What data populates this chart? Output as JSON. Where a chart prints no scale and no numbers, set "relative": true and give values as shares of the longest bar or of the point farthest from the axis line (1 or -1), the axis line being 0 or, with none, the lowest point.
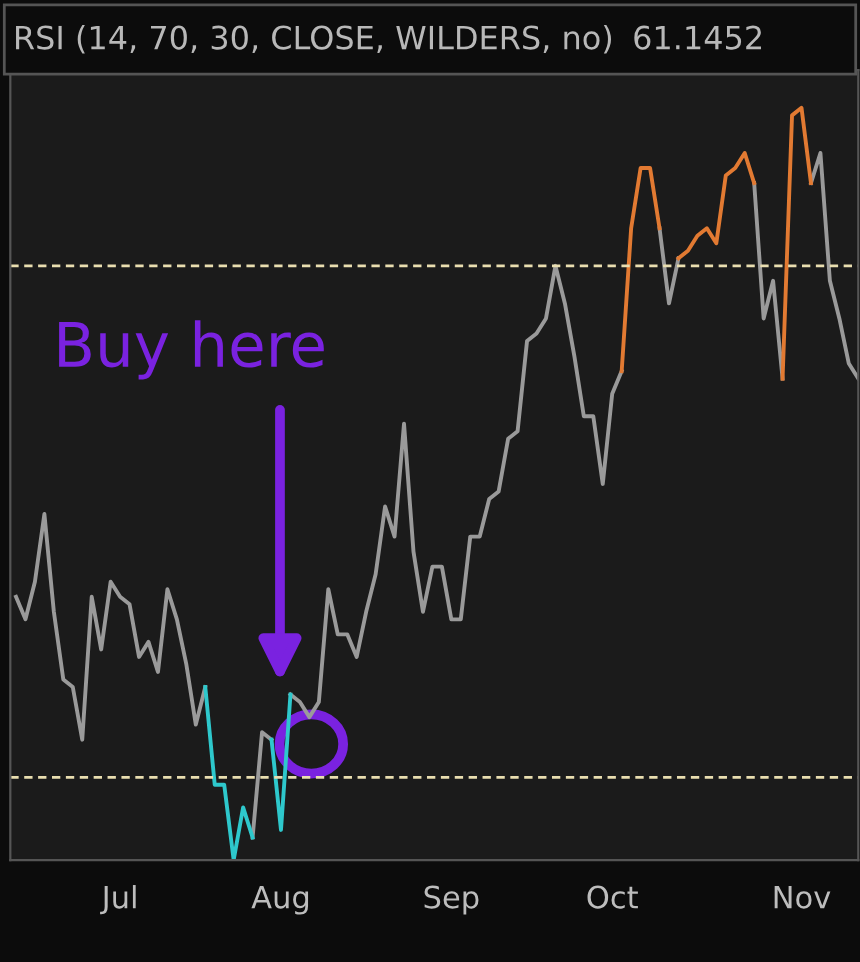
{
  "chart_data": {
    "type": "line",
    "title": "RSI (14, 70, 30, CLOSE, WILDERS, no)",
    "subtitle": "61.1452",
    "relative": true,
    "categories": [
      null,
      null,
      null,
      null,
      null,
      null,
      null,
      null,
      null,
      null,
      null,
      "Jul",
      null,
      null,
      null,
      null,
      null,
      null,
      null,
      null,
      null,
      null,
      null,
      null,
      null,
      null,
      null,
      null,
      "Aug",
      null,
      null,
      null,
      null,
      null,
      null,
      null,
      null,
      null,
      null,
      null,
      null,
      null,
      null,
      null,
      null,
      null,
      "Sep",
      null,
      null,
      null,
      null,
      null,
      null,
      null,
      null,
      null,
      null,
      null,
      null,
      null,
      null,
      null,
      null,
      "Oct",
      null,
      null,
      null,
      null,
      null,
      null,
      null,
      null,
      null,
      null,
      null,
      null,
      null,
      null,
      null,
      null,
      null,
      null,
      null,
      "Nov",
      null,
      null,
      null,
      null,
      null,
      null
    ],
    "series": [
      {
        "color": "#9a9a9a",
        "values": [
          0.35,
          0.32,
          0.37,
          0.46,
          0.33,
          0.24,
          0.23,
          0.16,
          0.35,
          0.28,
          0.37,
          0.35,
          0.34,
          0.27,
          0.29,
          0.25,
          0.36,
          0.32,
          0.26,
          0.18,
          0.23,
          null,
          null,
          null,
          null,
          0.03,
          0.17,
          0.16,
          null,
          0.22,
          0.21,
          0.19,
          0.21,
          0.36,
          0.3,
          0.3,
          0.27,
          0.33,
          0.38,
          0.47,
          0.43,
          0.58,
          0.41,
          0.33,
          0.39,
          0.39,
          0.32,
          0.32,
          0.43,
          0.43,
          0.48,
          0.49,
          0.56,
          0.57,
          0.69,
          0.7,
          0.72,
          0.79,
          0.74,
          0.67,
          0.59,
          0.59,
          0.5,
          0.62,
          0.65,
          null,
          null,
          null,
          0.84,
          0.74,
          0.8,
          null,
          null,
          null,
          null,
          null,
          null,
          null,
          0.9,
          0.72,
          0.77,
          0.64,
          null,
          null,
          0.9,
          0.94,
          0.77,
          0.72,
          0.66,
          0.64
        ]
      },
      {
        "color": "#2ec8cc",
        "values": [
          null,
          null,
          null,
          null,
          null,
          null,
          null,
          null,
          null,
          null,
          null,
          null,
          null,
          null,
          null,
          null,
          null,
          null,
          null,
          null,
          0.23,
          0.1,
          0.1,
          0,
          0.07,
          0.03,
          null,
          0.16,
          0.04,
          0.22,
          null,
          null,
          null,
          null,
          null,
          null,
          null,
          null,
          null,
          null,
          null,
          null,
          null,
          null,
          null,
          null,
          null,
          null,
          null,
          null,
          null,
          null,
          null,
          null,
          null,
          null,
          null,
          null,
          null,
          null,
          null,
          null,
          null,
          null,
          null,
          null,
          null,
          null,
          null,
          null,
          null,
          null,
          null,
          null,
          null,
          null,
          null,
          null,
          null,
          null,
          null,
          null,
          null,
          null,
          null,
          null,
          null,
          null,
          null,
          null
        ]
      },
      {
        "color": "#e27a32",
        "values": [
          null,
          null,
          null,
          null,
          null,
          null,
          null,
          null,
          null,
          null,
          null,
          null,
          null,
          null,
          null,
          null,
          null,
          null,
          null,
          null,
          null,
          null,
          null,
          null,
          null,
          null,
          null,
          null,
          null,
          null,
          null,
          null,
          null,
          null,
          null,
          null,
          null,
          null,
          null,
          null,
          null,
          null,
          null,
          null,
          null,
          null,
          null,
          null,
          null,
          null,
          null,
          null,
          null,
          null,
          null,
          null,
          null,
          null,
          null,
          null,
          null,
          null,
          null,
          null,
          0.65,
          0.84,
          0.92,
          0.92,
          0.84,
          null,
          0.8,
          0.81,
          0.83,
          0.84,
          0.82,
          0.91,
          0.92,
          0.94,
          0.9,
          null,
          null,
          0.64,
          0.99,
          1,
          0.9,
          null,
          null,
          null,
          null,
          null
        ]
      }
    ],
    "tick_labels": "x",
    "ref_lines": [
      {
        "axis": "y",
        "value": 0.79,
        "color": "#e9deb0",
        "line_style": "dashed"
      },
      {
        "axis": "y",
        "value": 0.11,
        "color": "#e9deb0",
        "line_style": "dashed"
      }
    ],
    "annotations": [
      "Buy here"
    ],
    "grid": false,
    "marker": "none",
    "line_style": "solid"
  }
}
